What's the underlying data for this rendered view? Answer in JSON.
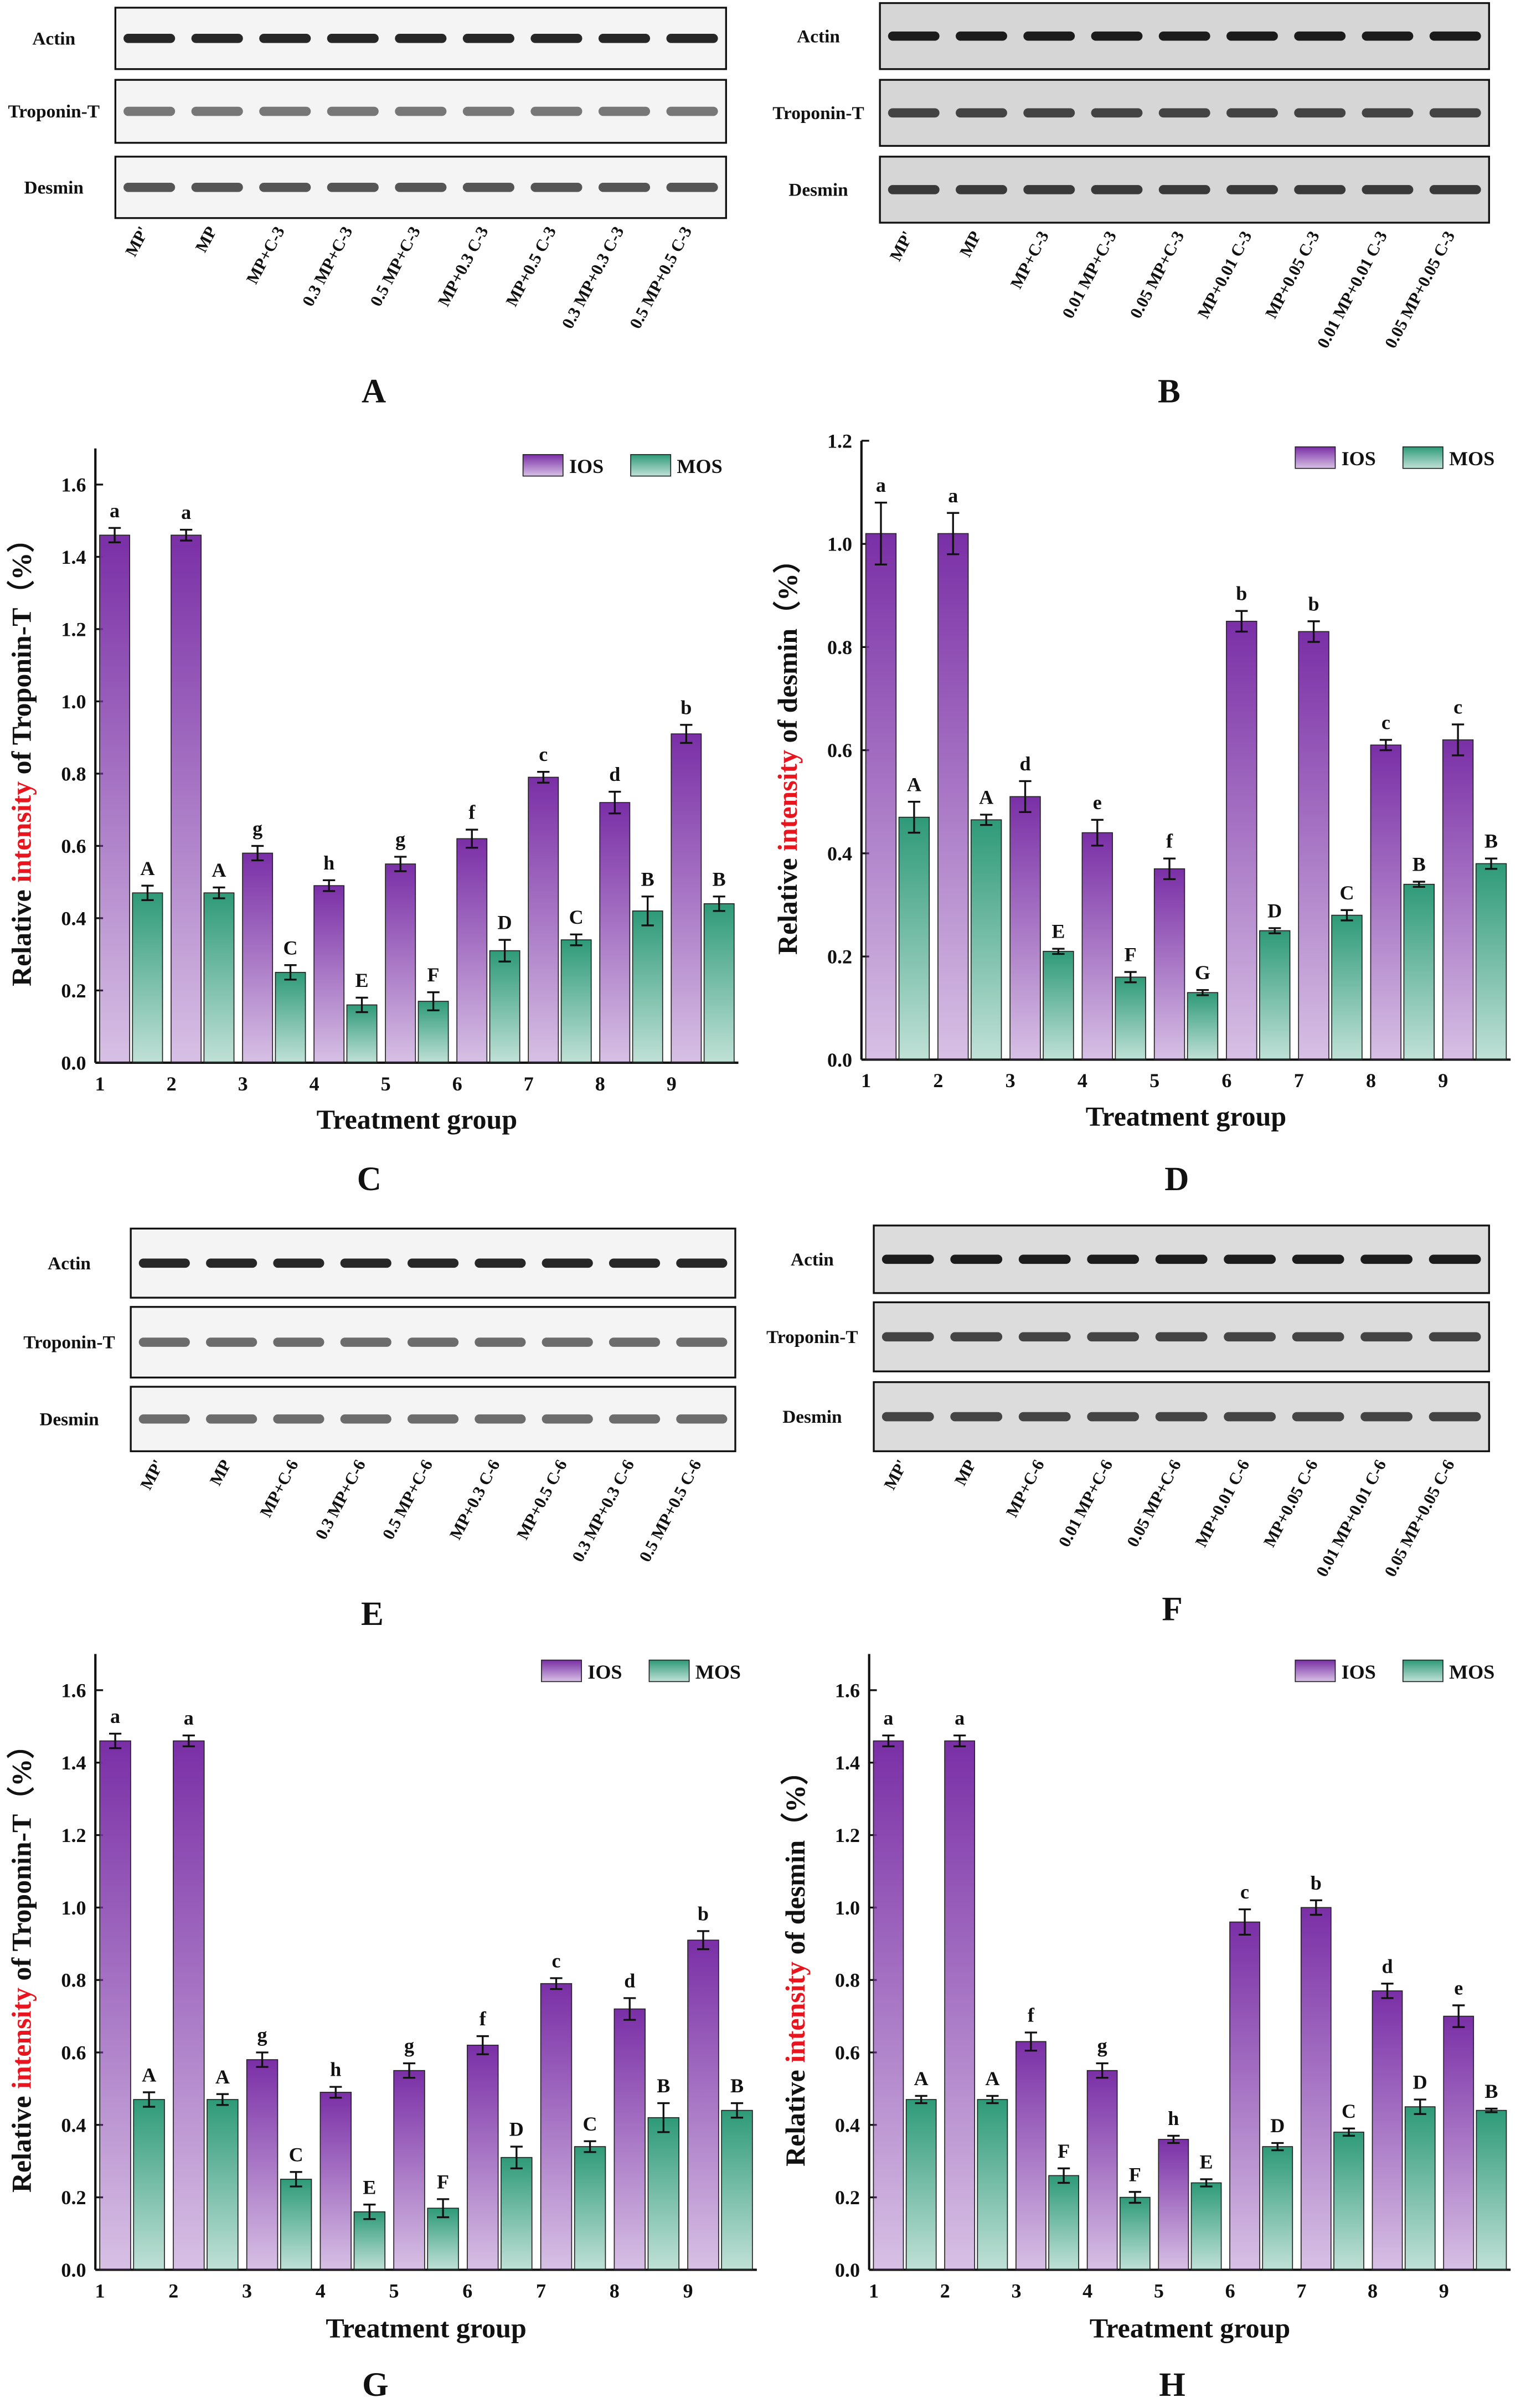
{
  "blots": [
    {
      "panel": "A",
      "rows": [
        "Actin",
        "Troponin-T",
        "Desmin"
      ],
      "lanes": [
        "MP'",
        "MP",
        "MP+C-3",
        "0.3 MP+C-3",
        "0.5 MP+C-3",
        "MP+0.3 C-3",
        "MP+0.5 C-3",
        "0.3 MP+0.3 C-3",
        "0.5 MP+0.5 C-3"
      ]
    },
    {
      "panel": "B",
      "rows": [
        "Actin",
        "Troponin-T",
        "Desmin"
      ],
      "lanes": [
        "MP'",
        "MP",
        "MP+C-3",
        "0.01 MP+C-3",
        "0.05 MP+C-3",
        "MP+0.01 C-3",
        "MP+0.05 C-3",
        "0.01 MP+0.01 C-3",
        "0.05 MP+0.05 C-3"
      ]
    },
    {
      "panel": "E",
      "rows": [
        "Actin",
        "Troponin-T",
        "Desmin"
      ],
      "lanes": [
        "MP'",
        "MP",
        "MP+C-6",
        "0.3 MP+C-6",
        "0.5 MP+C-6",
        "MP+0.3 C-6",
        "MP+0.5 C-6",
        "0.3 MP+0.3 C-6",
        "0.5 MP+0.5 C-6"
      ]
    },
    {
      "panel": "F",
      "rows": [
        "Actin",
        "Troponin-T",
        "Desmin"
      ],
      "lanes": [
        "MP'",
        "MP",
        "MP+C-6",
        "0.01 MP+C-6",
        "0.05 MP+C-6",
        "MP+0.01 C-6",
        "MP+0.05 C-6",
        "0.01 MP+0.01 C-6",
        "0.05 MP+0.05 C-6"
      ]
    }
  ],
  "chart_data": [
    {
      "type": "bar",
      "panel": "C",
      "ylabel": {
        "before": "Relative ",
        "highlight": "intensity",
        "after": " of Troponin-T（%）"
      },
      "xlabel": "Treatment group",
      "categories": [
        "1",
        "2",
        "3",
        "4",
        "5",
        "6",
        "7",
        "8",
        "9"
      ],
      "ylim": [
        0,
        1.7
      ],
      "yticks": [
        {
          "value": 0,
          "label": "0.0"
        },
        0.2,
        0.4,
        0.6,
        0.8,
        {
          "value": 1,
          "label": "1.0"
        },
        1.2,
        1.4,
        1.6
      ],
      "legend": "upper right",
      "series": [
        {
          "name": "IOS",
          "color": "#7a2fa6",
          "values": [
            1.46,
            1.46,
            0.58,
            0.49,
            0.55,
            0.62,
            0.79,
            0.72,
            0.91
          ],
          "errors": [
            0.02,
            0.015,
            0.02,
            0.015,
            0.02,
            0.025,
            0.015,
            0.03,
            0.025
          ],
          "letters": [
            "a",
            "a",
            "g",
            "h",
            "g",
            "f",
            "c",
            "d",
            "b"
          ]
        },
        {
          "name": "MOS",
          "color": "#2e9a78",
          "values": [
            0.47,
            0.47,
            0.25,
            0.16,
            0.17,
            0.31,
            0.34,
            0.42,
            0.44
          ],
          "errors": [
            0.02,
            0.015,
            0.02,
            0.02,
            0.025,
            0.03,
            0.015,
            0.04,
            0.02
          ],
          "letters": [
            "A",
            "A",
            "C",
            "E",
            "F",
            "D",
            "C",
            "B",
            "B"
          ]
        }
      ]
    },
    {
      "type": "bar",
      "panel": "D",
      "ylabel": {
        "before": "Relative ",
        "highlight": "intensity",
        "after": " of desmin（%）"
      },
      "xlabel": "Treatment group",
      "categories": [
        "1",
        "2",
        "3",
        "4",
        "5",
        "6",
        "7",
        "8",
        "9"
      ],
      "ylim": [
        0,
        1.2
      ],
      "yticks": [
        {
          "value": 0,
          "label": "0.0"
        },
        0.2,
        0.4,
        0.6,
        0.8,
        {
          "value": 1,
          "label": "1.0"
        },
        1.2
      ],
      "legend": "upper right",
      "series": [
        {
          "name": "IOS",
          "color": "#7a2fa6",
          "values": [
            1.02,
            1.02,
            0.51,
            0.44,
            0.37,
            0.85,
            0.83,
            0.61,
            0.62
          ],
          "errors": [
            0.06,
            0.04,
            0.03,
            0.025,
            0.02,
            0.02,
            0.02,
            0.01,
            0.03
          ],
          "letters": [
            "a",
            "a",
            "d",
            "e",
            "f",
            "b",
            "b",
            "c",
            "c"
          ]
        },
        {
          "name": "MOS",
          "color": "#2e9a78",
          "values": [
            0.47,
            0.465,
            0.21,
            0.16,
            0.13,
            0.25,
            0.28,
            0.34,
            0.38
          ],
          "errors": [
            0.03,
            0.01,
            0.005,
            0.01,
            0.005,
            0.005,
            0.01,
            0.005,
            0.01
          ],
          "letters": [
            "A",
            "A",
            "E",
            "F",
            "G",
            "D",
            "C",
            "B",
            "B"
          ]
        }
      ]
    },
    {
      "type": "bar",
      "panel": "G",
      "ylabel": {
        "before": "Relative ",
        "highlight": "intensity",
        "after": " of Troponin-T（%）"
      },
      "xlabel": "Treatment group",
      "categories": [
        "1",
        "2",
        "3",
        "4",
        "5",
        "6",
        "7",
        "8",
        "9"
      ],
      "ylim": [
        0,
        1.7
      ],
      "yticks": [
        {
          "value": 0,
          "label": "0.0"
        },
        0.2,
        0.4,
        0.6,
        0.8,
        {
          "value": 1,
          "label": "1.0"
        },
        1.2,
        1.4,
        1.6
      ],
      "legend": "upper right",
      "series": [
        {
          "name": "IOS",
          "color": "#7a2fa6",
          "values": [
            1.46,
            1.46,
            0.58,
            0.49,
            0.55,
            0.62,
            0.79,
            0.72,
            0.91
          ],
          "errors": [
            0.02,
            0.015,
            0.02,
            0.015,
            0.02,
            0.025,
            0.015,
            0.03,
            0.025
          ],
          "letters": [
            "a",
            "a",
            "g",
            "h",
            "g",
            "f",
            "c",
            "d",
            "b"
          ]
        },
        {
          "name": "MOS",
          "color": "#2e9a78",
          "values": [
            0.47,
            0.47,
            0.25,
            0.16,
            0.17,
            0.31,
            0.34,
            0.42,
            0.44
          ],
          "errors": [
            0.02,
            0.015,
            0.02,
            0.02,
            0.025,
            0.03,
            0.015,
            0.04,
            0.02
          ],
          "letters": [
            "A",
            "A",
            "C",
            "E",
            "F",
            "D",
            "C",
            "B",
            "B"
          ]
        }
      ]
    },
    {
      "type": "bar",
      "panel": "H",
      "ylabel": {
        "before": "Relative ",
        "highlight": "intensity",
        "after": " of desmin（%）"
      },
      "xlabel": "Treatment group",
      "categories": [
        "1",
        "2",
        "3",
        "4",
        "5",
        "6",
        "7",
        "8",
        "9"
      ],
      "ylim": [
        0,
        1.7
      ],
      "yticks": [
        {
          "value": 0,
          "label": "0.0"
        },
        0.2,
        0.4,
        0.6,
        0.8,
        {
          "value": 1,
          "label": "1.0"
        },
        1.2,
        1.4,
        1.6
      ],
      "legend": "upper right",
      "series": [
        {
          "name": "IOS",
          "color": "#7a2fa6",
          "values": [
            1.46,
            1.46,
            0.63,
            0.55,
            0.36,
            0.96,
            1.0,
            0.77,
            0.7
          ],
          "errors": [
            0.015,
            0.015,
            0.025,
            0.02,
            0.01,
            0.035,
            0.02,
            0.02,
            0.03
          ],
          "letters": [
            "a",
            "a",
            "f",
            "g",
            "h",
            "c",
            "b",
            "d",
            "e"
          ]
        },
        {
          "name": "MOS",
          "color": "#2e9a78",
          "values": [
            0.47,
            0.47,
            0.26,
            0.2,
            0.24,
            0.34,
            0.38,
            0.45,
            0.44
          ],
          "errors": [
            0.01,
            0.01,
            0.02,
            0.015,
            0.01,
            0.01,
            0.01,
            0.02,
            0.005
          ],
          "letters": [
            "A",
            "A",
            "F",
            "F",
            "E",
            "D",
            "C",
            "D",
            "B"
          ]
        }
      ]
    }
  ]
}
